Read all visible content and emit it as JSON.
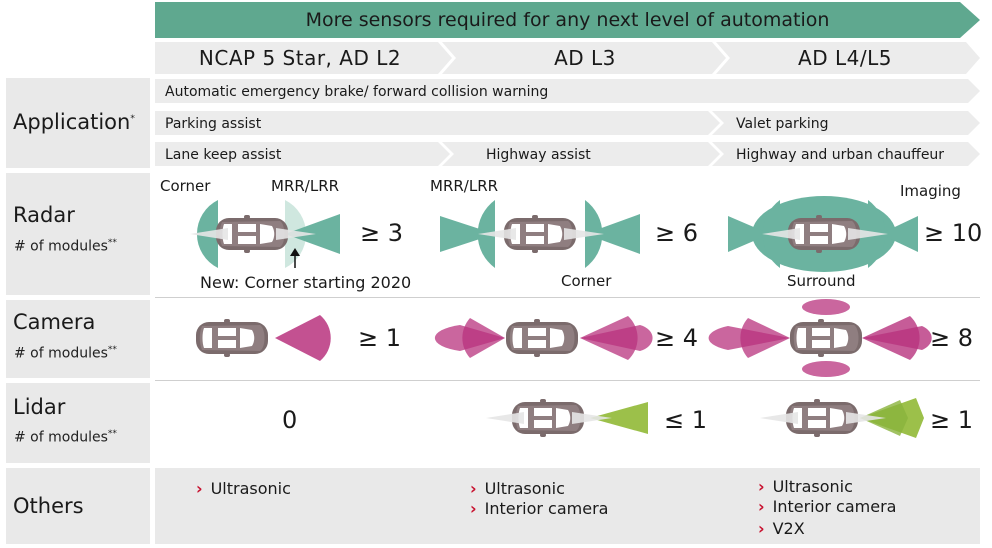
{
  "banner": "More sensors required for any next level of automation",
  "levels": [
    "NCAP 5 Star, AD L2",
    "AD L3",
    "AD L4/L5"
  ],
  "rows": {
    "application": {
      "title": "Application",
      "mark": "*"
    },
    "radar": {
      "title": "Radar",
      "sub": "# of modules",
      "mark": "**"
    },
    "camera": {
      "title": "Camera",
      "sub": "# of modules",
      "mark": "**"
    },
    "lidar": {
      "title": "Lidar",
      "sub": "# of modules",
      "mark": "**"
    },
    "others": {
      "title": "Others"
    }
  },
  "applications": {
    "aeb": "Automatic emergency brake/ forward collision warning",
    "parking": "Parking assist",
    "valet": "Valet parking",
    "lane": "Lane keep assist",
    "highway": "Highway assist",
    "chauffeur": "Highway and urban chauffeur"
  },
  "radar": {
    "labels": {
      "corner": "Corner",
      "mrr1": "MRR/LRR",
      "mrr2": "MRR/LRR",
      "imaging": "Imaging",
      "new": "New: Corner starting 2020",
      "corner2": "Corner",
      "surround": "Surround"
    },
    "counts": [
      "≥ 3",
      "≥ 6",
      "≥ 10"
    ]
  },
  "camera": {
    "counts": [
      "≥ 1",
      "≥ 4",
      "≥ 8"
    ]
  },
  "lidar": {
    "counts": [
      "0",
      "≤ 1",
      "≥ 1"
    ]
  },
  "others": {
    "l2": [
      "Ultrasonic"
    ],
    "l3": [
      "Ultrasonic",
      "Interior camera"
    ],
    "l45": [
      "Ultrasonic",
      "Interior camera",
      "V2X"
    ]
  },
  "colors": {
    "teal": "#6bb3a0",
    "banner": "#5fa88f",
    "magenta": "#b8337e",
    "lime": "#9cc04a",
    "arrow_gray": "#ececec",
    "accent": "#c8102e"
  }
}
